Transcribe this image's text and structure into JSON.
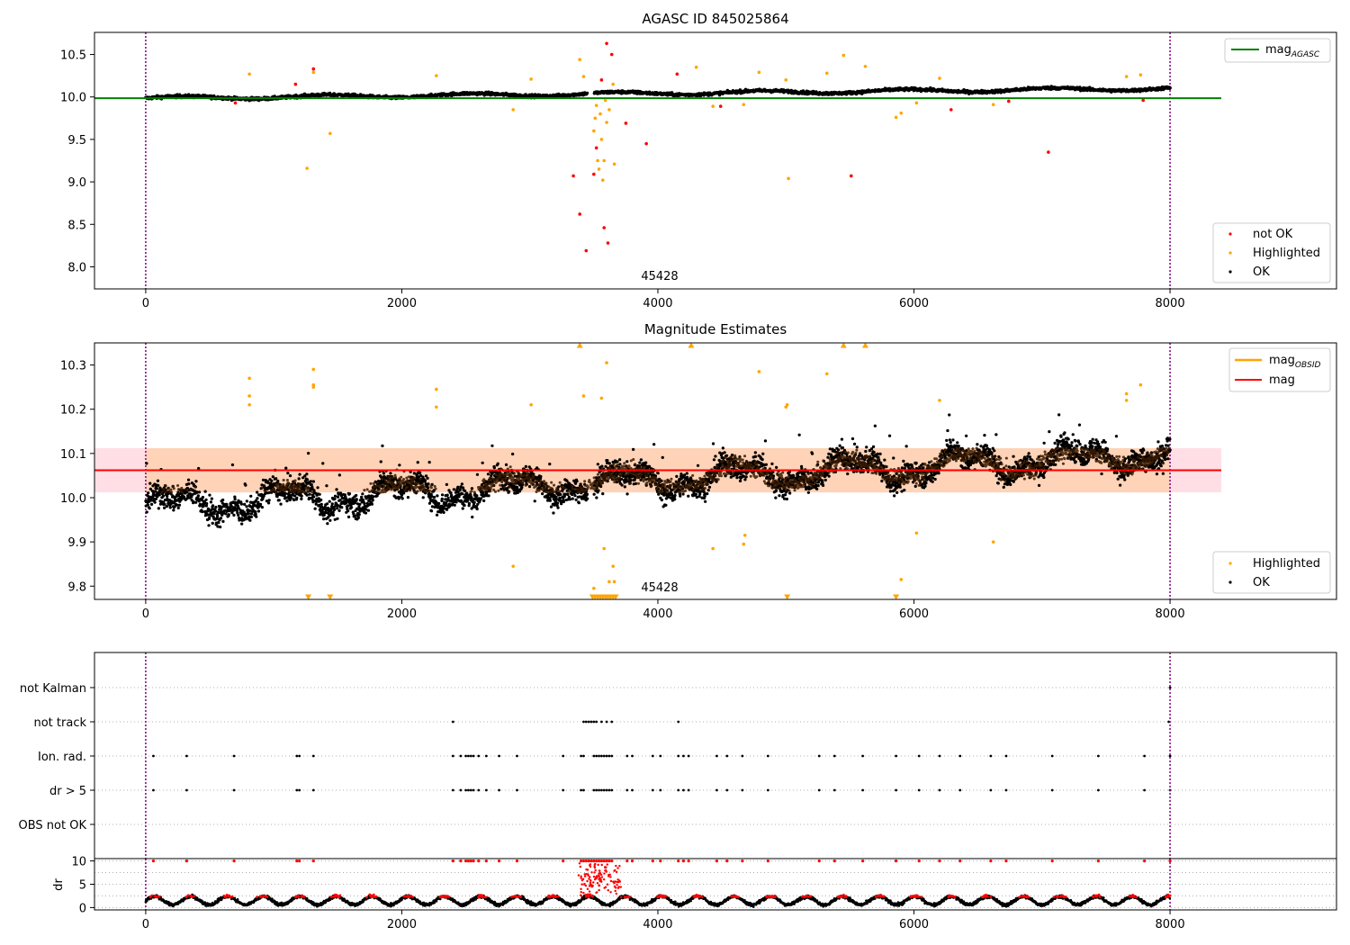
{
  "chart_data": [
    {
      "type": "scatter",
      "title": "AGASC ID 845025864",
      "xlabel": "",
      "ylabel": "",
      "xlim": [
        -400,
        9300
      ],
      "ylim": [
        7.74,
        10.76
      ],
      "xticks": [
        0,
        2000,
        4000,
        6000,
        8000
      ],
      "yticks": [
        8.0,
        8.5,
        9.0,
        9.5,
        10.0,
        10.5
      ],
      "ytick_labels": [
        "8.0",
        "8.5",
        "9.0",
        "9.5",
        "10.0",
        "10.5"
      ],
      "grid": false,
      "vlines": [
        0,
        8000
      ],
      "vline_color": "#800080",
      "annotation": {
        "text": "45428",
        "x": 4000,
        "y": 7.88
      },
      "hline": {
        "label": "mag",
        "label_sub": "AGASC",
        "value": 9.985,
        "color": "#008000",
        "x_range": [
          0,
          8400
        ]
      },
      "ok_band": {
        "description": "dense band of OK points",
        "x_range": [
          0,
          8000
        ],
        "start_mean": 9.985,
        "end_mean": 10.1,
        "spread": 0.03,
        "color": "#000000"
      },
      "series": [
        {
          "name": "not OK",
          "color": "#ff0000",
          "x": [
            700,
            1170,
            1310,
            3340,
            3390,
            3440,
            3500,
            3520,
            3560,
            3580,
            3600,
            3610,
            3640,
            3750,
            3910,
            4150,
            4490,
            5510,
            6290,
            6740,
            7050,
            7790
          ],
          "y": [
            9.93,
            10.15,
            10.33,
            9.07,
            8.62,
            8.19,
            9.09,
            9.4,
            10.2,
            8.46,
            10.63,
            8.28,
            10.5,
            9.69,
            9.45,
            10.27,
            9.89,
            9.07,
            9.85,
            9.95,
            9.35,
            9.96
          ]
        },
        {
          "name": "Highlighted",
          "color": "#ffa500",
          "x": [
            810,
            1260,
            1310,
            1440,
            2270,
            2870,
            3010,
            3390,
            3420,
            3500,
            3510,
            3520,
            3530,
            3540,
            3550,
            3560,
            3570,
            3580,
            3590,
            3600,
            3620,
            3650,
            3660,
            4300,
            4430,
            4670,
            4790,
            5000,
            5020,
            5320,
            5450,
            5620,
            5860,
            5900,
            6020,
            6200,
            6620,
            7660,
            7770
          ],
          "y": [
            10.27,
            9.16,
            10.29,
            9.57,
            10.25,
            9.85,
            10.21,
            10.44,
            10.24,
            9.6,
            9.75,
            9.9,
            9.25,
            9.15,
            9.8,
            9.5,
            9.02,
            9.25,
            9.96,
            9.7,
            9.85,
            10.15,
            9.21,
            10.35,
            9.89,
            9.91,
            10.29,
            10.2,
            9.04,
            10.28,
            10.49,
            10.36,
            9.76,
            9.81,
            9.93,
            10.22,
            9.91,
            10.24,
            10.26
          ]
        }
      ],
      "legend_entries": [
        "not OK",
        "Highlighted",
        "OK"
      ],
      "legend_placement": "lower-right",
      "legend2_placement": "upper-right"
    },
    {
      "type": "scatter",
      "title": "Magnitude Estimates",
      "xlabel": "",
      "ylabel": "",
      "xlim": [
        -400,
        9300
      ],
      "ylim": [
        9.77,
        10.35
      ],
      "xticks": [
        0,
        2000,
        4000,
        6000,
        8000
      ],
      "yticks": [
        9.8,
        9.9,
        10.0,
        10.1,
        10.2,
        10.3
      ],
      "ytick_labels": [
        "9.8",
        "9.9",
        "10.0",
        "10.1",
        "10.2",
        "10.3"
      ],
      "grid": false,
      "vlines": [
        0,
        8000
      ],
      "vline_color": "#800080",
      "annotation": {
        "text": "45428",
        "x": 4000,
        "y": 9.8
      },
      "hline": {
        "label": "mag",
        "value": 10.062,
        "color": "#ff0000",
        "x_range": [
          0,
          8400
        ]
      },
      "band": {
        "low": 10.012,
        "high": 10.112,
        "x_range": [
          0,
          8400
        ],
        "color": "#ffc0cb"
      },
      "obsid_band": {
        "low": 10.012,
        "high": 10.112,
        "x_range": [
          0,
          8000
        ],
        "color": "#ffa500",
        "label": "mag",
        "label_sub": "OBSID"
      },
      "ok_band": {
        "description": "dense band of OK points",
        "x_range": [
          0,
          8000
        ],
        "start_mean": 9.98,
        "end_mean": 10.1,
        "spread": 0.06,
        "color": "#000000"
      },
      "series": [
        {
          "name": "Highlighted",
          "color": "#ffa500",
          "x": [
            810,
            810,
            810,
            1310,
            1310,
            1310,
            2270,
            2270,
            2870,
            3010,
            3420,
            3500,
            3560,
            3580,
            3600,
            3620,
            3650,
            3660,
            4430,
            4670,
            4680,
            4790,
            5000,
            5010,
            5320,
            6020,
            6200,
            6620,
            5900,
            7660,
            7660,
            7770
          ],
          "y": [
            10.27,
            10.23,
            10.21,
            10.29,
            10.255,
            10.25,
            10.245,
            10.205,
            9.845,
            10.21,
            10.23,
            9.795,
            10.225,
            9.885,
            10.305,
            9.81,
            9.845,
            9.81,
            9.885,
            9.895,
            9.915,
            10.285,
            10.205,
            10.21,
            10.28,
            9.92,
            10.22,
            9.9,
            9.815,
            10.235,
            10.22,
            10.255
          ]
        },
        {
          "name": "Highlighted (clipped low)",
          "color": "#ffa500",
          "x": [
            1270,
            1440,
            3490,
            3510,
            3530,
            3550,
            3570,
            3590,
            3610,
            3630,
            3650,
            3670,
            5010,
            5860
          ],
          "y": [
            9.775,
            9.775,
            9.775,
            9.775,
            9.775,
            9.775,
            9.775,
            9.775,
            9.775,
            9.775,
            9.775,
            9.775,
            9.775,
            9.775
          ]
        },
        {
          "name": "Highlighted (clipped high)",
          "color": "#ffa500",
          "x": [
            3390,
            4260,
            5450,
            5620
          ],
          "y": [
            10.345,
            10.345,
            10.345,
            10.345
          ]
        }
      ],
      "legend_entries": [
        "Highlighted",
        "OK"
      ],
      "legend_placement": "lower-right",
      "legend2_entries": [
        "mag",
        "mag"
      ],
      "legend2_placement": "upper-right"
    },
    {
      "type": "scatter",
      "title": "",
      "xlabel": "",
      "ylabel": "",
      "xlim": [
        -400,
        9300
      ],
      "categories": [
        "not Kalman",
        "not track",
        "Ion. rad.",
        "dr > 5",
        "OBS not OK"
      ],
      "grid": true,
      "vlines": [
        0,
        8000
      ],
      "vline_color": "#800080",
      "flags": {
        "not Kalman": [
          8000
        ],
        "not track": [
          2400,
          3420,
          3440,
          3460,
          3480,
          3500,
          3520,
          3560,
          3600,
          3640,
          4160,
          7990
        ],
        "Ion. rad.": [
          60,
          320,
          690,
          1180,
          1200,
          1310,
          2400,
          2460,
          2500,
          2520,
          2540,
          2560,
          2600,
          2660,
          2760,
          2900,
          3260,
          3400,
          3420,
          3500,
          3520,
          3540,
          3560,
          3580,
          3600,
          3620,
          3640,
          3760,
          3800,
          3960,
          4020,
          4160,
          4200,
          4240,
          4460,
          4540,
          4660,
          4860,
          5260,
          5380,
          5600,
          5860,
          6040,
          6200,
          6360,
          6600,
          6720,
          7080,
          7440,
          7800,
          8000
        ],
        "dr > 5": [
          60,
          320,
          690,
          1180,
          1200,
          1310,
          2400,
          2460,
          2500,
          2520,
          2540,
          2560,
          2600,
          2660,
          2760,
          2900,
          3260,
          3400,
          3420,
          3500,
          3520,
          3540,
          3560,
          3580,
          3600,
          3620,
          3640,
          3760,
          3800,
          3960,
          4020,
          4160,
          4200,
          4240,
          4460,
          4540,
          4660,
          4860,
          5260,
          5380,
          5600,
          5860,
          6040,
          6200,
          6360,
          6600,
          6720,
          7080,
          7440,
          7800,
          8000
        ],
        "OBS not OK": []
      }
    },
    {
      "type": "scatter",
      "title": "",
      "xlabel": "",
      "ylabel": "dr",
      "xlim": [
        -400,
        9300
      ],
      "ylim": [
        -0.5,
        10.5
      ],
      "xticks": [
        0,
        2000,
        4000,
        6000,
        8000
      ],
      "yticks": [
        0,
        5,
        10
      ],
      "ytick_labels": [
        "0",
        "5",
        "10"
      ],
      "grid": true,
      "vlines": [
        0,
        8000
      ],
      "vline_color": "#800080",
      "ok_band": {
        "description": "oscillating dr of OK points",
        "x_range": [
          0,
          8000
        ],
        "mean": 1.5,
        "amplitude": 0.9,
        "color": "#000000"
      },
      "not_ok_color": "#ff0000",
      "not_ok_saturated_x": [
        60,
        320,
        690,
        1180,
        1200,
        1310,
        2400,
        2460,
        2500,
        2520,
        2540,
        2560,
        2600,
        2660,
        2760,
        2900,
        3260,
        3400,
        3420,
        3440,
        3460,
        3480,
        3500,
        3520,
        3540,
        3560,
        3580,
        3600,
        3620,
        3640,
        3760,
        3800,
        3960,
        4020,
        4160,
        4200,
        4240,
        4460,
        4540,
        4660,
        4860,
        5260,
        5380,
        5600,
        5860,
        6040,
        6200,
        6360,
        6600,
        6720,
        7080,
        7440,
        7800,
        8000
      ]
    }
  ],
  "tick_labels": {
    "x": [
      "0",
      "2000",
      "4000",
      "6000",
      "8000"
    ]
  }
}
